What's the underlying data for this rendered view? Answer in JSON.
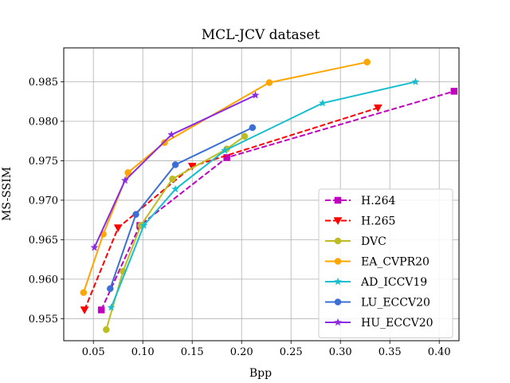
{
  "chart_data": {
    "type": "line",
    "title": "MCL-JCV dataset",
    "xlabel": "Bpp",
    "ylabel": "MS-SSIM",
    "xlim": [
      0.02,
      0.42
    ],
    "ylim": [
      0.9522,
      0.9893
    ],
    "xticks": [
      0.05,
      0.1,
      0.15,
      0.2,
      0.25,
      0.3,
      0.35,
      0.4
    ],
    "xtick_labels": [
      "0.05",
      "0.10",
      "0.15",
      "0.20",
      "0.25",
      "0.30",
      "0.35",
      "0.40"
    ],
    "yticks": [
      0.955,
      0.96,
      0.965,
      0.97,
      0.975,
      0.98,
      0.985
    ],
    "ytick_labels": [
      "0.955",
      "0.960",
      "0.965",
      "0.970",
      "0.975",
      "0.980",
      "0.985"
    ],
    "grid": true,
    "legend_position": "lower-right",
    "series": [
      {
        "name": "H.264",
        "color": "#bf00bf",
        "dash": "dashed",
        "marker": "square",
        "x": [
          0.058,
          0.097,
          0.185,
          0.415
        ],
        "y": [
          0.9561,
          0.9668,
          0.9754,
          0.9838
        ]
      },
      {
        "name": "H.265",
        "color": "#ff0000",
        "dash": "dashed",
        "marker": "triangle-down",
        "x": [
          0.041,
          0.075,
          0.15,
          0.338
        ],
        "y": [
          0.9561,
          0.9665,
          0.9743,
          0.9817
        ]
      },
      {
        "name": "DVC",
        "color": "#bcbd22",
        "dash": "solid",
        "marker": "circle",
        "x": [
          0.063,
          0.08,
          0.098,
          0.13,
          0.185,
          0.203
        ],
        "y": [
          0.9536,
          0.961,
          0.9668,
          0.9727,
          0.9765,
          0.9781
        ]
      },
      {
        "name": "EA_CVPR20",
        "color": "#ffa500",
        "dash": "solid",
        "marker": "circle",
        "x": [
          0.04,
          0.06,
          0.085,
          0.122,
          0.228,
          0.327
        ],
        "y": [
          0.9583,
          0.9657,
          0.9735,
          0.9773,
          0.9849,
          0.9875
        ]
      },
      {
        "name": "AD_ICCV19",
        "color": "#17becf",
        "dash": "solid",
        "marker": "star",
        "x": [
          0.068,
          0.101,
          0.133,
          0.183,
          0.282,
          0.376
        ],
        "y": [
          0.9564,
          0.9668,
          0.9714,
          0.9763,
          0.9823,
          0.985
        ]
      },
      {
        "name": "LU_ECCV20",
        "color": "#3b6fd6",
        "dash": "solid",
        "marker": "circle",
        "x": [
          0.067,
          0.093,
          0.133,
          0.211
        ],
        "y": [
          0.9588,
          0.9682,
          0.9745,
          0.9792
        ]
      },
      {
        "name": "HU_ECCV20",
        "color": "#8a2be2",
        "dash": "solid",
        "marker": "star",
        "x": [
          0.051,
          0.082,
          0.129,
          0.214
        ],
        "y": [
          0.964,
          0.9725,
          0.9783,
          0.9833
        ]
      }
    ]
  }
}
